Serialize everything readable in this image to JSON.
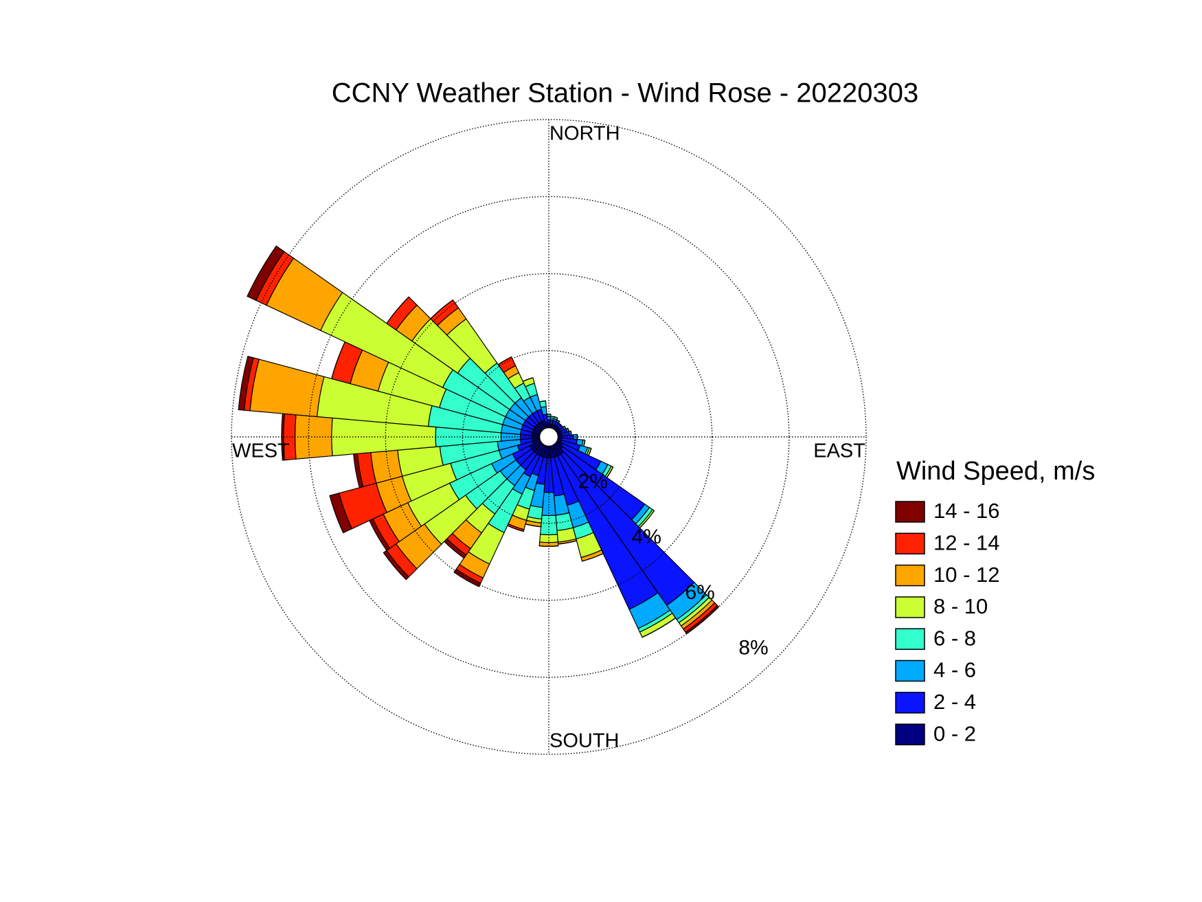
{
  "chart_data": {
    "type": "windrose",
    "title": "CCNY Weather Station - Wind Rose - 20220303",
    "direction_labels": [
      "NORTH",
      "EAST",
      "SOUTH",
      "WEST"
    ],
    "legend_title": "Wind Speed, m/s",
    "rlim": [
      0,
      8
    ],
    "rticks": [
      {
        "value": 2,
        "label": "2%"
      },
      {
        "value": 4,
        "label": "4%"
      },
      {
        "value": 6,
        "label": "6%"
      },
      {
        "value": 8,
        "label": "8%"
      }
    ],
    "grid": true,
    "legend_position": "right",
    "directions": [
      0,
      10,
      20,
      30,
      40,
      50,
      60,
      70,
      80,
      90,
      100,
      110,
      120,
      130,
      140,
      150,
      160,
      170,
      180,
      190,
      200,
      210,
      220,
      230,
      240,
      250,
      260,
      270,
      280,
      290,
      300,
      310,
      320,
      330,
      340,
      350
    ],
    "series": [
      {
        "name": "0 - 2",
        "color": "#000080",
        "values": [
          0.1,
          0.1,
          0.1,
          0.1,
          0.1,
          0.1,
          0.1,
          0.1,
          0.1,
          0.1,
          0.1,
          0.1,
          0.15,
          0.2,
          0.3,
          0.3,
          0.3,
          0.3,
          0.3,
          0.3,
          0.3,
          0.3,
          0.3,
          0.3,
          0.3,
          0.2,
          0.2,
          0.2,
          0.2,
          0.2,
          0.2,
          0.2,
          0.2,
          0.2,
          0.2,
          0.15
        ]
      },
      {
        "name": "2 - 4",
        "color": "#0a14ff",
        "values": [
          0.1,
          0.1,
          0.1,
          0.1,
          0.1,
          0.1,
          0.1,
          0.15,
          0.2,
          0.3,
          0.4,
          0.5,
          1.1,
          2.6,
          4.8,
          4.4,
          1.3,
          1.0,
          0.9,
          0.7,
          0.5,
          0.6,
          0.5,
          0.5,
          0.5,
          0.4,
          0.3,
          0.3,
          0.3,
          0.3,
          0.3,
          0.3,
          0.3,
          0.3,
          0.3,
          0.2
        ]
      },
      {
        "name": "4 - 6",
        "color": "#00aaff",
        "values": [
          0.1,
          0.05,
          0.05,
          0.05,
          0,
          0,
          0.05,
          0.05,
          0.05,
          0.1,
          0.15,
          0.2,
          0.2,
          0.15,
          0.45,
          0.55,
          0.6,
          0.5,
          0.6,
          0.6,
          0.4,
          0.5,
          0.5,
          0.5,
          0.6,
          0.5,
          0.6,
          0.5,
          0.5,
          0.5,
          0.5,
          0.5,
          0.5,
          0.4,
          0.4,
          0.2
        ]
      },
      {
        "name": "6 - 8",
        "color": "#33ffcc",
        "values": [
          0.05,
          0.05,
          0.05,
          0,
          0,
          0,
          0,
          0,
          0,
          0,
          0.05,
          0.05,
          0.1,
          0.1,
          0.1,
          0.1,
          0.3,
          0.4,
          0.5,
          0.3,
          0.5,
          1.1,
          0.9,
          1.1,
          1.2,
          1.3,
          1.5,
          1.7,
          1.9,
          1.7,
          1.8,
          1.65,
          1.1,
          0.4,
          0.3,
          0.15
        ]
      },
      {
        "name": "8 - 10",
        "color": "#ccff33",
        "values": [
          0,
          0,
          0,
          0,
          0,
          0,
          0,
          0,
          0,
          0,
          0,
          0.05,
          0.05,
          0.05,
          0.1,
          0.15,
          0.5,
          0.3,
          0.2,
          0.1,
          0.3,
          0.9,
          0.6,
          1.3,
          1.2,
          1.3,
          1.1,
          2.7,
          2.9,
          1.65,
          3.5,
          1.45,
          1.4,
          0.3,
          0.15,
          0
        ]
      },
      {
        "name": "10 - 12",
        "color": "#ffa500",
        "values": [
          0,
          0,
          0,
          0,
          0,
          0,
          0,
          0,
          0,
          0,
          0,
          0,
          0,
          0,
          0.1,
          0,
          0.1,
          0.05,
          0.1,
          0.1,
          0.25,
          0.4,
          0.5,
          0.9,
          0.7,
          0.7,
          0.7,
          0.95,
          1.75,
          0.75,
          1.55,
          0.5,
          0.35,
          0.2,
          0,
          0
        ]
      },
      {
        "name": "12 - 14",
        "color": "#ff2200",
        "values": [
          0,
          0,
          0,
          0,
          0,
          0,
          0,
          0,
          0,
          0,
          0,
          0,
          0,
          0,
          0.1,
          0,
          0,
          0,
          0,
          0,
          0.05,
          0.15,
          0.2,
          0.3,
          0.3,
          1.0,
          0.35,
          0.3,
          0.15,
          0.5,
          0.3,
          0.3,
          0.25,
          0.25,
          0,
          0
        ]
      },
      {
        "name": "14 - 16",
        "color": "#800000",
        "values": [
          0,
          0,
          0,
          0,
          0,
          0,
          0,
          0,
          0,
          0,
          0,
          0,
          0,
          0,
          0.05,
          0,
          0,
          0,
          0,
          0,
          0,
          0.1,
          0.1,
          0.1,
          0.1,
          0.25,
          0.1,
          0.05,
          0.15,
          0,
          0.25,
          0,
          0,
          0,
          0,
          0
        ]
      }
    ]
  }
}
